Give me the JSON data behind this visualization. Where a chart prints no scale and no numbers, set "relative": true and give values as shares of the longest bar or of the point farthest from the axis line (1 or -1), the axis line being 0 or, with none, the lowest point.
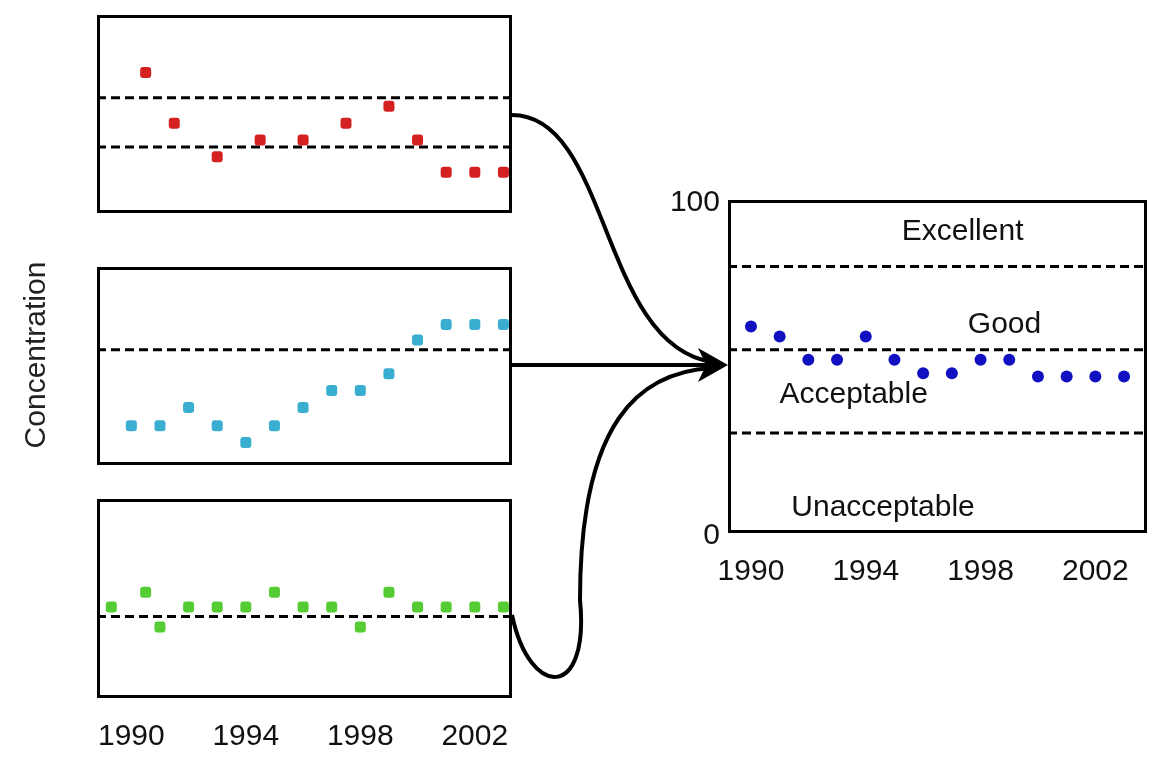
{
  "chart_data": [
    {
      "type": "scatter",
      "relative": true,
      "marker": "square",
      "color": "#d42020",
      "tick_labels": false,
      "xlim": [
        1988.8,
        2003.3
      ],
      "xticks": [
        1990,
        1994,
        1998,
        2002
      ],
      "x": [
        1990.5,
        1991.5,
        1993,
        1994.5,
        1996,
        1997.5,
        1999,
        2000,
        2001,
        2002,
        2003
      ],
      "values": [
        1,
        0.64,
        0.4,
        0.52,
        0.52,
        0.64,
        0.76,
        0.52,
        0.29,
        0.29,
        0.29
      ],
      "ref_lines": [
        {
          "axis": "y",
          "value": 0.82,
          "color": "#000000",
          "line_style": "dashed"
        },
        {
          "axis": "y",
          "value": 0.47,
          "color": "#000000",
          "line_style": "dashed"
        }
      ]
    },
    {
      "type": "scatter",
      "relative": true,
      "marker": "square",
      "color": "#3aaed0",
      "tick_labels": false,
      "ylabel": "Concentration",
      "xlim": [
        1988.8,
        2003.3
      ],
      "xticks": [
        1990,
        1994,
        1998,
        2002
      ],
      "x": [
        1990,
        1991,
        1992,
        1993,
        1994,
        1995,
        1996,
        1997,
        1998,
        1999,
        2000,
        2001,
        2002,
        2003
      ],
      "values": [
        0.28,
        0.28,
        0.41,
        0.28,
        0.16,
        0.28,
        0.41,
        0.53,
        0.53,
        0.65,
        0.89,
        1,
        1,
        1
      ],
      "ref_lines": [
        {
          "axis": "y",
          "value": 0.82,
          "color": "#000000",
          "line_style": "dashed"
        }
      ]
    },
    {
      "type": "scatter",
      "relative": true,
      "marker": "square",
      "color": "#55cc33",
      "tick_labels": "x",
      "xlim": [
        1988.8,
        2003.3
      ],
      "xticks": [
        1990,
        1994,
        1998,
        2002
      ],
      "x": [
        1989.3,
        1990.5,
        1991,
        1992,
        1993,
        1994,
        1995,
        1996,
        1997,
        1998,
        1999,
        2000,
        2001,
        2002,
        2003
      ],
      "values": [
        0.86,
        1,
        0.67,
        0.86,
        0.86,
        0.86,
        1,
        0.86,
        0.86,
        0.67,
        1,
        0.86,
        0.86,
        0.86,
        0.86
      ],
      "ref_lines": [
        {
          "axis": "y",
          "value": 0.77,
          "color": "#000000",
          "line_style": "dashed"
        }
      ]
    },
    {
      "type": "scatter",
      "marker": "circle",
      "color": "#1010c0",
      "xlim": [
        1989.2,
        2003.8
      ],
      "xticks": [
        1990,
        1994,
        1998,
        2002
      ],
      "ylim": [
        0,
        100
      ],
      "yticks": [
        0,
        100
      ],
      "x": [
        1990,
        1991,
        1992,
        1993,
        1994,
        1995,
        1996,
        1997,
        1998,
        1999,
        2000,
        2001,
        2002,
        2003
      ],
      "values": [
        62,
        59,
        52,
        52,
        59,
        52,
        48,
        48,
        52,
        52,
        47,
        47,
        47,
        47
      ],
      "ref_lines": [
        {
          "axis": "y",
          "value": 80,
          "color": "#000000",
          "line_style": "dashed"
        },
        {
          "axis": "y",
          "value": 55,
          "color": "#000000",
          "line_style": "dashed"
        },
        {
          "axis": "y",
          "value": 30,
          "color": "#000000",
          "line_style": "dashed"
        }
      ],
      "annotations": [
        "Excellent",
        "Good",
        "Acceptable",
        "Unacceptable"
      ]
    }
  ]
}
